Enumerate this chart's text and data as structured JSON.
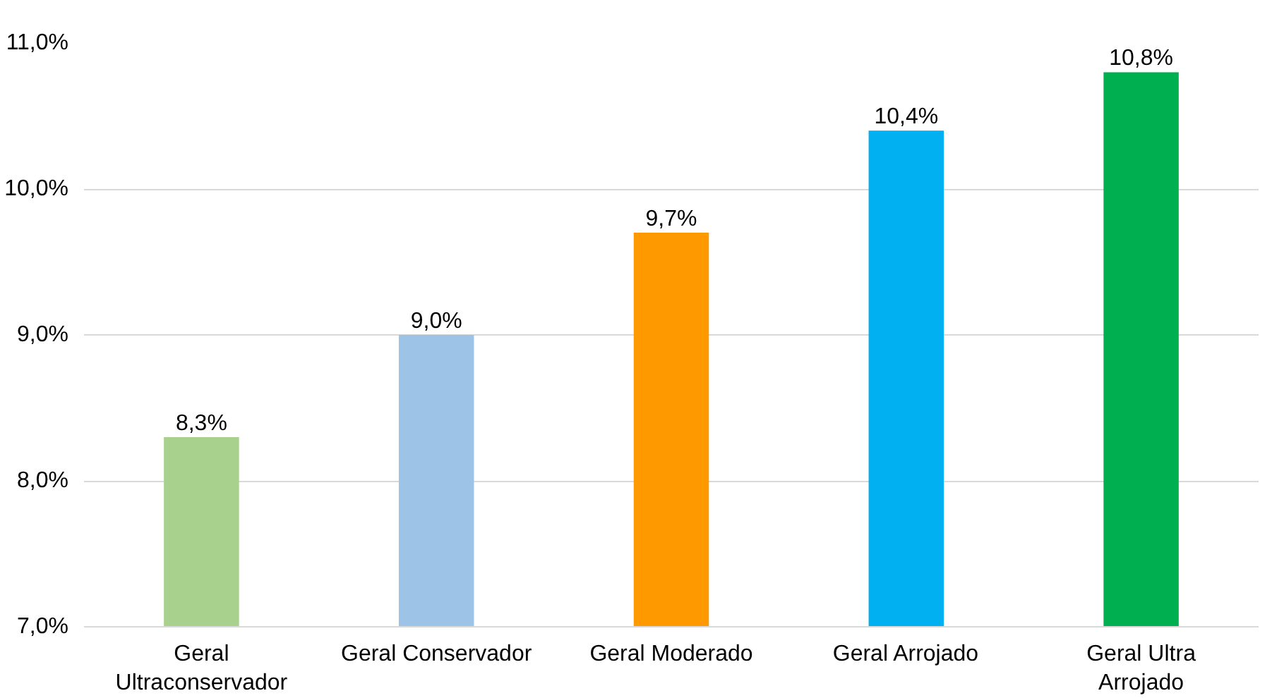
{
  "chart_data": {
    "type": "bar",
    "categories": [
      "Geral\nUltraconservador",
      "Geral Conservador",
      "Geral Moderado",
      "Geral Arrojado",
      "Geral Ultra\nArrojado"
    ],
    "values": [
      8.3,
      9.0,
      9.7,
      10.4,
      10.8
    ],
    "colors": [
      "#a9d18e",
      "#9dc3e6",
      "#ff9900",
      "#00b0f0",
      "#00b050"
    ],
    "value_labels": [
      "8,3%",
      "9,0%",
      "9,7%",
      "10,4%",
      "10,8%"
    ],
    "ylim": [
      7,
      11
    ],
    "yticks": [
      {
        "value": 7,
        "label": "7,0%"
      },
      {
        "value": 8,
        "label": "8,0%"
      },
      {
        "value": 9,
        "label": "9,0%"
      },
      {
        "value": 10,
        "label": "10,0%"
      },
      {
        "value": 11,
        "label": "11,0%"
      }
    ],
    "grid": "y"
  }
}
